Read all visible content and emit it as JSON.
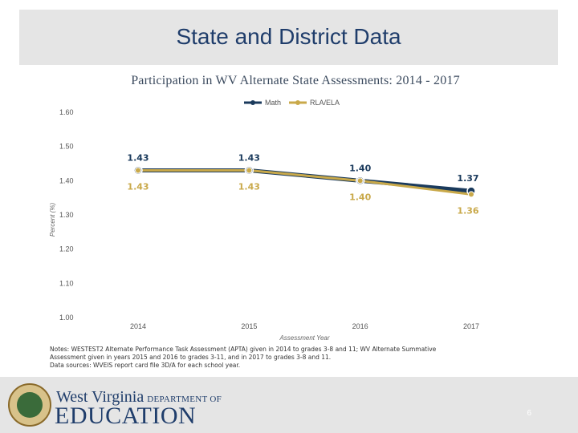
{
  "slide": {
    "title": "State and District Data",
    "page_number": "6"
  },
  "chart_data": {
    "type": "line",
    "title": "Participation in WV Alternate State Assessments: 2014 - 2017",
    "categories": [
      "2014",
      "2015",
      "2016",
      "2017"
    ],
    "series": [
      {
        "name": "Math",
        "values": [
          1.43,
          1.43,
          1.4,
          1.37
        ],
        "labels": [
          "1.43",
          "1.43",
          "1.40",
          "1.37"
        ],
        "color": "#1a3a5c"
      },
      {
        "name": "RLA/ELA",
        "values": [
          1.43,
          1.43,
          1.4,
          1.36
        ],
        "labels": [
          "1.43",
          "1.43",
          "1.40",
          "1.36"
        ],
        "color": "#c9a94a"
      }
    ],
    "xlabel": "Assessment Year",
    "ylabel": "Percent (%)",
    "ylim": [
      1.0,
      1.6
    ],
    "yticks": [
      "1.00",
      "1.10",
      "1.20",
      "1.30",
      "1.40",
      "1.50",
      "1.60"
    ],
    "grid": false,
    "legend": "top-center"
  },
  "notes": {
    "line1": "Notes: WESTEST2 Alternate Performance Task Assessment (APTA) given in 2014 to grades 3-8 and 11; WV Alternate Summative",
    "line2": "Assessment given in years 2015 and 2016 to grades 3-11, and in 2017 to grades 3-8 and 11.",
    "line3": "Data sources: WVEIS report card file 3D/A for each school year."
  },
  "footer": {
    "logo_line1": "West Virginia",
    "logo_dept": "DEPARTMENT OF",
    "logo_line2": "EDUCATION"
  }
}
